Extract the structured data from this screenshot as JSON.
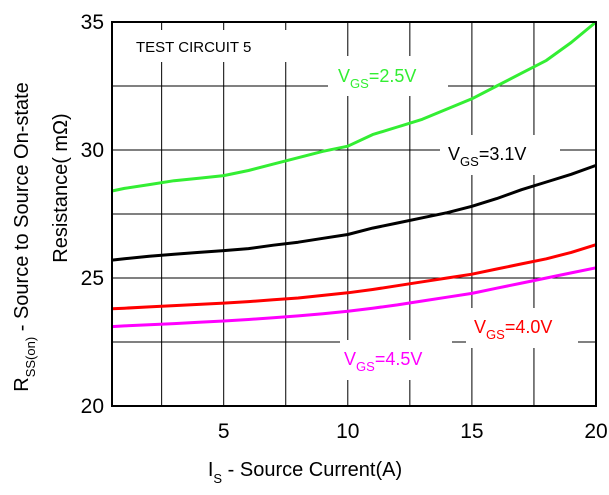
{
  "chart_data": {
    "type": "line",
    "title": "",
    "test_label": "TEST CIRCUIT 5",
    "xlabel": {
      "main": "I",
      "sub": "S",
      "rest": " - Source Current(A)"
    },
    "ylabel": {
      "line1_main": "R",
      "line1_sub": "SS(on)",
      "line1_rest": " - Source to Source On-state",
      "line2": "Resistance( mΩ)"
    },
    "xlim": [
      0.5,
      20
    ],
    "ylim": [
      20,
      35
    ],
    "xticks": [
      5,
      10,
      15,
      20
    ],
    "yticks": [
      20,
      25,
      30,
      35
    ],
    "grid": true,
    "series": [
      {
        "name": "VGS=2.5V",
        "label": {
          "main": "V",
          "sub": "GS",
          "rest": "=2.5V"
        },
        "color": "#33ee33",
        "x": [
          0.5,
          1,
          2,
          3,
          4,
          5,
          6,
          7,
          8,
          9,
          10,
          11,
          12,
          13,
          14,
          15,
          16,
          17,
          18,
          19,
          20
        ],
        "y": [
          28.4,
          28.5,
          28.65,
          28.8,
          28.9,
          29.0,
          29.2,
          29.45,
          29.7,
          29.95,
          30.15,
          30.6,
          30.9,
          31.2,
          31.6,
          32.0,
          32.5,
          33.0,
          33.5,
          34.2,
          35.0
        ]
      },
      {
        "name": "VGS=3.1V",
        "label": {
          "main": "V",
          "sub": "GS",
          "rest": "=3.1V"
        },
        "color": "#000000",
        "x": [
          0.5,
          1,
          2,
          3,
          4,
          5,
          6,
          7,
          8,
          9,
          10,
          11,
          12,
          13,
          14,
          15,
          16,
          17,
          18,
          19,
          20
        ],
        "y": [
          25.7,
          25.75,
          25.85,
          25.93,
          26.0,
          26.07,
          26.15,
          26.28,
          26.4,
          26.55,
          26.7,
          26.95,
          27.15,
          27.35,
          27.55,
          27.8,
          28.1,
          28.45,
          28.75,
          29.05,
          29.4
        ]
      },
      {
        "name": "VGS=4.0V",
        "label": {
          "main": "V",
          "sub": "GS",
          "rest": "=4.0V"
        },
        "color": "#ff0000",
        "x": [
          0.5,
          1,
          2,
          3,
          4,
          5,
          6,
          7,
          8,
          9,
          10,
          11,
          12,
          13,
          14,
          15,
          16,
          17,
          18,
          19,
          20
        ],
        "y": [
          23.8,
          23.82,
          23.87,
          23.92,
          23.97,
          24.02,
          24.08,
          24.15,
          24.22,
          24.32,
          24.42,
          24.55,
          24.7,
          24.85,
          25.0,
          25.15,
          25.35,
          25.55,
          25.75,
          26.0,
          26.3
        ]
      },
      {
        "name": "VGS=4.5V",
        "label": {
          "main": "V",
          "sub": "GS",
          "rest": "=4.5V"
        },
        "color": "#ff00ff",
        "x": [
          0.5,
          1,
          2,
          3,
          4,
          5,
          6,
          7,
          8,
          9,
          10,
          11,
          12,
          13,
          14,
          15,
          16,
          17,
          18,
          19,
          20
        ],
        "y": [
          23.1,
          23.13,
          23.17,
          23.22,
          23.27,
          23.32,
          23.38,
          23.45,
          23.52,
          23.6,
          23.7,
          23.82,
          23.95,
          24.1,
          24.25,
          24.4,
          24.6,
          24.8,
          25.0,
          25.2,
          25.4
        ]
      }
    ]
  }
}
